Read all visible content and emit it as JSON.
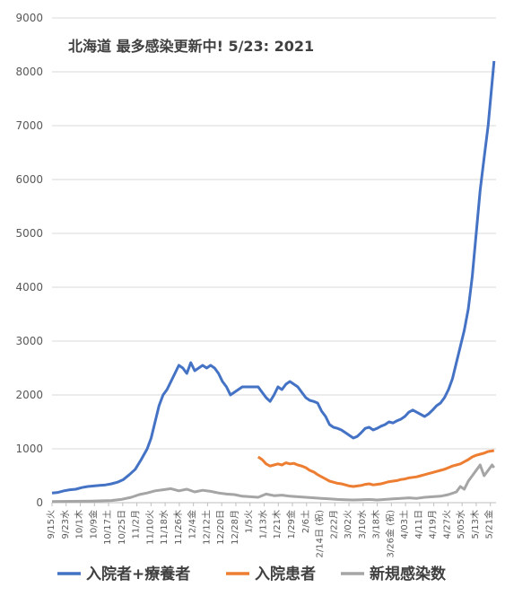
{
  "chart_data": {
    "type": "line",
    "title": "北海道 最多感染更新中! 5/23: 2021",
    "xlabel": "",
    "ylabel": "",
    "ylim": [
      0,
      9000
    ],
    "yticks": [
      0,
      1000,
      2000,
      3000,
      4000,
      5000,
      6000,
      7000,
      8000,
      9000
    ],
    "grid": "horizontal",
    "legend_position": "bottom",
    "x_tick_labels": [
      "9/15火",
      "9/23水",
      "10/1木",
      "10/9金",
      "10/17土",
      "10/25日",
      "11/2月",
      "11/10火",
      "11/18水",
      "11/26木",
      "12/4金",
      "12/12土",
      "12/20日",
      "12/28月",
      "1/5火",
      "1/13水",
      "1/21木",
      "1/29金",
      "2/6土",
      "2/14日 (祝)",
      "2/22月",
      "3/02火",
      "3/10水",
      "3/18木",
      "3/26金 (祝)",
      "4/03土",
      "4/11日",
      "4/19月",
      "4/27火",
      "5/05水",
      "5/13木",
      "5/21金"
    ],
    "series": [
      {
        "name": "入院者+療養者",
        "color": "#4472C4",
        "points": [
          [
            0,
            180
          ],
          [
            3,
            190
          ],
          [
            6,
            220
          ],
          [
            9,
            240
          ],
          [
            12,
            250
          ],
          [
            15,
            280
          ],
          [
            18,
            300
          ],
          [
            21,
            310
          ],
          [
            24,
            320
          ],
          [
            27,
            330
          ],
          [
            30,
            350
          ],
          [
            33,
            380
          ],
          [
            36,
            430
          ],
          [
            39,
            520
          ],
          [
            42,
            620
          ],
          [
            45,
            800
          ],
          [
            48,
            1000
          ],
          [
            50,
            1200
          ],
          [
            52,
            1500
          ],
          [
            54,
            1800
          ],
          [
            56,
            2000
          ],
          [
            58,
            2100
          ],
          [
            60,
            2250
          ],
          [
            62,
            2400
          ],
          [
            64,
            2550
          ],
          [
            66,
            2500
          ],
          [
            68,
            2400
          ],
          [
            70,
            2600
          ],
          [
            72,
            2450
          ],
          [
            74,
            2500
          ],
          [
            76,
            2550
          ],
          [
            78,
            2500
          ],
          [
            80,
            2550
          ],
          [
            82,
            2500
          ],
          [
            84,
            2400
          ],
          [
            86,
            2250
          ],
          [
            88,
            2150
          ],
          [
            90,
            2000
          ],
          [
            92,
            2050
          ],
          [
            94,
            2100
          ],
          [
            96,
            2150
          ],
          [
            104,
            2150
          ],
          [
            106,
            2050
          ],
          [
            108,
            1950
          ],
          [
            110,
            1880
          ],
          [
            112,
            2000
          ],
          [
            114,
            2150
          ],
          [
            116,
            2100
          ],
          [
            118,
            2200
          ],
          [
            120,
            2250
          ],
          [
            122,
            2200
          ],
          [
            124,
            2150
          ],
          [
            126,
            2050
          ],
          [
            128,
            1950
          ],
          [
            130,
            1900
          ],
          [
            132,
            1880
          ],
          [
            134,
            1850
          ],
          [
            136,
            1700
          ],
          [
            138,
            1600
          ],
          [
            140,
            1450
          ],
          [
            142,
            1400
          ],
          [
            144,
            1380
          ],
          [
            146,
            1350
          ],
          [
            148,
            1300
          ],
          [
            150,
            1250
          ],
          [
            152,
            1200
          ],
          [
            154,
            1230
          ],
          [
            156,
            1300
          ],
          [
            158,
            1380
          ],
          [
            160,
            1400
          ],
          [
            162,
            1350
          ],
          [
            164,
            1380
          ],
          [
            166,
            1420
          ],
          [
            168,
            1450
          ],
          [
            170,
            1500
          ],
          [
            172,
            1480
          ],
          [
            174,
            1520
          ],
          [
            176,
            1550
          ],
          [
            178,
            1600
          ],
          [
            180,
            1680
          ],
          [
            182,
            1720
          ],
          [
            188,
            1600
          ],
          [
            190,
            1650
          ],
          [
            192,
            1720
          ],
          [
            194,
            1800
          ],
          [
            196,
            1850
          ],
          [
            198,
            1950
          ],
          [
            200,
            2100
          ],
          [
            202,
            2300
          ],
          [
            204,
            2600
          ],
          [
            206,
            2900
          ],
          [
            208,
            3200
          ],
          [
            210,
            3600
          ],
          [
            212,
            4200
          ],
          [
            214,
            5000
          ],
          [
            216,
            5800
          ],
          [
            218,
            6400
          ],
          [
            220,
            7000
          ],
          [
            222,
            7800
          ],
          [
            223,
            8200
          ]
        ]
      },
      {
        "name": "入院患者",
        "color": "#ED7D31",
        "points": [
          [
            104,
            850
          ],
          [
            106,
            800
          ],
          [
            108,
            720
          ],
          [
            110,
            680
          ],
          [
            112,
            700
          ],
          [
            114,
            720
          ],
          [
            116,
            700
          ],
          [
            118,
            740
          ],
          [
            120,
            720
          ],
          [
            122,
            730
          ],
          [
            124,
            700
          ],
          [
            126,
            680
          ],
          [
            128,
            650
          ],
          [
            130,
            600
          ],
          [
            132,
            570
          ],
          [
            134,
            520
          ],
          [
            136,
            480
          ],
          [
            138,
            440
          ],
          [
            140,
            400
          ],
          [
            142,
            380
          ],
          [
            144,
            360
          ],
          [
            146,
            350
          ],
          [
            148,
            330
          ],
          [
            150,
            310
          ],
          [
            152,
            300
          ],
          [
            154,
            310
          ],
          [
            156,
            320
          ],
          [
            158,
            340
          ],
          [
            160,
            350
          ],
          [
            162,
            330
          ],
          [
            164,
            340
          ],
          [
            166,
            350
          ],
          [
            168,
            370
          ],
          [
            170,
            390
          ],
          [
            172,
            400
          ],
          [
            174,
            410
          ],
          [
            176,
            430
          ],
          [
            178,
            440
          ],
          [
            180,
            460
          ],
          [
            182,
            470
          ],
          [
            184,
            480
          ],
          [
            186,
            500
          ],
          [
            188,
            520
          ],
          [
            190,
            540
          ],
          [
            192,
            560
          ],
          [
            194,
            580
          ],
          [
            196,
            600
          ],
          [
            198,
            620
          ],
          [
            200,
            650
          ],
          [
            202,
            680
          ],
          [
            204,
            700
          ],
          [
            206,
            720
          ],
          [
            208,
            760
          ],
          [
            210,
            800
          ],
          [
            212,
            850
          ],
          [
            214,
            880
          ],
          [
            216,
            900
          ],
          [
            218,
            920
          ],
          [
            220,
            950
          ],
          [
            222,
            960
          ],
          [
            223,
            970
          ]
        ]
      },
      {
        "name": "新規感染数",
        "color": "#A5A5A5",
        "points": [
          [
            0,
            20
          ],
          [
            10,
            25
          ],
          [
            20,
            30
          ],
          [
            30,
            40
          ],
          [
            35,
            60
          ],
          [
            40,
            100
          ],
          [
            44,
            150
          ],
          [
            48,
            180
          ],
          [
            52,
            220
          ],
          [
            56,
            240
          ],
          [
            60,
            260
          ],
          [
            64,
            220
          ],
          [
            68,
            250
          ],
          [
            72,
            200
          ],
          [
            76,
            230
          ],
          [
            80,
            210
          ],
          [
            84,
            180
          ],
          [
            88,
            160
          ],
          [
            92,
            150
          ],
          [
            96,
            120
          ],
          [
            104,
            100
          ],
          [
            108,
            160
          ],
          [
            112,
            130
          ],
          [
            116,
            140
          ],
          [
            120,
            120
          ],
          [
            124,
            110
          ],
          [
            128,
            100
          ],
          [
            132,
            90
          ],
          [
            136,
            80
          ],
          [
            140,
            70
          ],
          [
            144,
            60
          ],
          [
            148,
            55
          ],
          [
            152,
            50
          ],
          [
            156,
            55
          ],
          [
            160,
            60
          ],
          [
            164,
            50
          ],
          [
            168,
            60
          ],
          [
            172,
            70
          ],
          [
            176,
            80
          ],
          [
            180,
            90
          ],
          [
            184,
            80
          ],
          [
            188,
            100
          ],
          [
            192,
            110
          ],
          [
            196,
            120
          ],
          [
            200,
            150
          ],
          [
            204,
            200
          ],
          [
            206,
            300
          ],
          [
            208,
            250
          ],
          [
            210,
            400
          ],
          [
            212,
            500
          ],
          [
            214,
            600
          ],
          [
            216,
            700
          ],
          [
            218,
            500
          ],
          [
            220,
            600
          ],
          [
            222,
            700
          ],
          [
            223,
            650
          ]
        ]
      }
    ]
  }
}
